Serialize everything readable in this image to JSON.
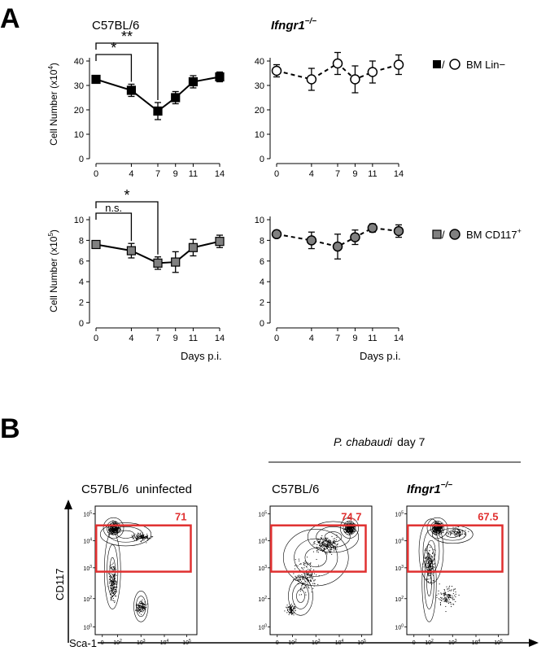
{
  "panel_a": {
    "label": "A",
    "x_label_left": "Days p.i.",
    "x_label_right": "Days p.i.",
    "legend_top": "BM Lin−",
    "legend_bottom": "BM CD117",
    "legend_bottom_sup": "+",
    "legend_sep": "/"
  },
  "panel_b": {
    "label": "B",
    "infection_label": "P. chabaudi",
    "infection_suffix": "day 7",
    "plots": [
      {
        "title": "C57BL/6  uninfected",
        "gate_value": "71"
      },
      {
        "title": "C57BL/6",
        "gate_value": "74.7"
      },
      {
        "title": "Ifngr1",
        "title_sup": "−/−",
        "gate_value": "67.5"
      }
    ],
    "y_axis": "CD117",
    "x_axis": "Sca-1",
    "tick_base": "10",
    "tick_sups": [
      "5",
      "4",
      "3",
      "2",
      "0"
    ],
    "x_tick_sups": [
      "0",
      "2",
      "3",
      "4",
      "5"
    ],
    "gate_color": "#e03030"
  },
  "chart_data": [
    {
      "type": "line",
      "title": "C57BL/6",
      "ylabel": "Cell Number (x10",
      "ylabel_sup": "4",
      "ylabel_close": ")",
      "xlabel": "",
      "ylim": [
        0,
        45
      ],
      "x": [
        0,
        4,
        7,
        9,
        11,
        14
      ],
      "x_ticks": [
        0,
        4,
        7,
        9,
        11,
        14
      ],
      "y_ticks": [
        0,
        10,
        20,
        30,
        40
      ],
      "series": [
        {
          "values": [
            32.5,
            28,
            19.5,
            25,
            31.5,
            33.5
          ],
          "err": [
            1,
            2.5,
            3.5,
            2.5,
            2.5,
            2
          ],
          "marker": "square",
          "fill": "#000000",
          "line": "solid"
        }
      ],
      "annotations": [
        {
          "text": "**",
          "from": 0,
          "to": 7
        },
        {
          "text": "*",
          "from": 0,
          "to": 4
        }
      ]
    },
    {
      "type": "line",
      "title": "Ifngr1",
      "title_sup": "−/−",
      "ylim": [
        0,
        45
      ],
      "x": [
        0,
        4,
        7,
        9,
        11,
        14
      ],
      "x_ticks": [
        0,
        4,
        7,
        9,
        11,
        14
      ],
      "y_ticks": [
        0,
        10,
        20,
        30,
        40
      ],
      "series": [
        {
          "values": [
            36,
            32.5,
            39,
            32.5,
            35.5,
            38.5
          ],
          "err": [
            2.5,
            4.5,
            4.5,
            5.5,
            4.5,
            4
          ],
          "marker": "circle",
          "fill": "#ffffff",
          "line": "dashed"
        }
      ]
    },
    {
      "type": "line",
      "ylabel": "Cell Number (x10",
      "ylabel_sup": "5",
      "ylabel_close": ")",
      "xlabel": "Days p.i.",
      "ylim": [
        0,
        10
      ],
      "x": [
        0,
        4,
        7,
        9,
        11,
        14
      ],
      "x_ticks": [
        0,
        4,
        7,
        9,
        11,
        14
      ],
      "y_ticks": [
        0,
        2,
        4,
        6,
        8,
        10
      ],
      "series": [
        {
          "values": [
            7.6,
            7,
            5.8,
            5.9,
            7.3,
            7.9
          ],
          "err": [
            0.3,
            0.7,
            0.6,
            1,
            0.8,
            0.6
          ],
          "marker": "square",
          "fill": "#808080",
          "line": "solid"
        }
      ],
      "annotations": [
        {
          "text": "*",
          "from": 0,
          "to": 7
        },
        {
          "text": "n.s.",
          "from": 0,
          "to": 4
        }
      ]
    },
    {
      "type": "line",
      "xlabel": "Days p.i.",
      "ylim": [
        0,
        10
      ],
      "x": [
        0,
        4,
        7,
        9,
        11,
        14
      ],
      "x_ticks": [
        0,
        4,
        7,
        9,
        11,
        14
      ],
      "y_ticks": [
        0,
        2,
        4,
        6,
        8,
        10
      ],
      "series": [
        {
          "values": [
            8.6,
            8,
            7.4,
            8.3,
            9.2,
            8.9
          ],
          "err": [
            0.3,
            0.8,
            1.2,
            0.7,
            0.4,
            0.6
          ],
          "marker": "circle",
          "fill": "#808080",
          "line": "dashed"
        }
      ]
    }
  ]
}
